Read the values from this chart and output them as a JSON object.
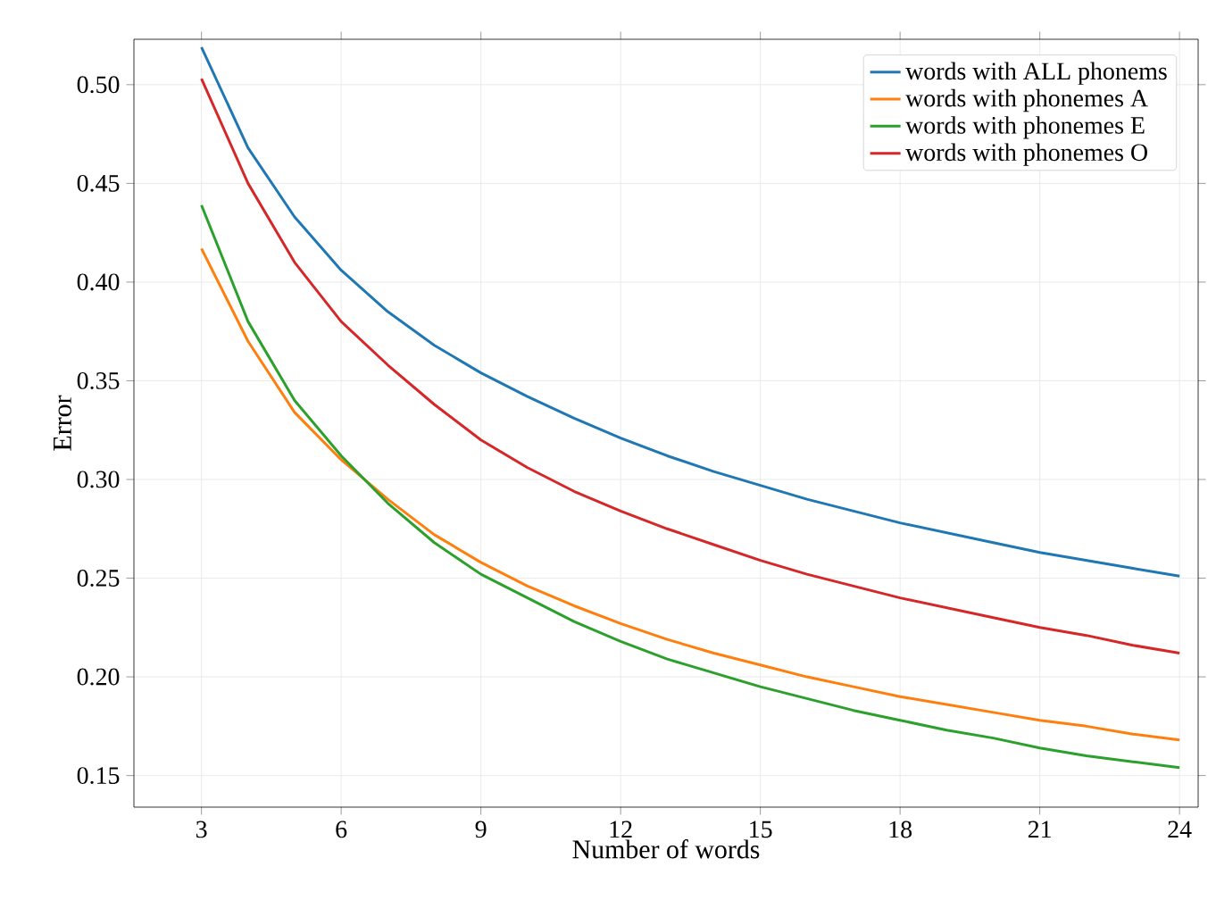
{
  "chart_data": {
    "type": "line",
    "xlabel": "Number of words",
    "ylabel": "Error",
    "x": [
      3,
      4,
      5,
      6,
      7,
      8,
      9,
      10,
      11,
      12,
      13,
      14,
      15,
      16,
      17,
      18,
      19,
      20,
      21,
      22,
      23,
      24
    ],
    "series": [
      {
        "name": "words with ALL phonems",
        "color": "#1f77b4",
        "values": [
          0.519,
          0.468,
          0.433,
          0.406,
          0.385,
          0.368,
          0.354,
          0.342,
          0.331,
          0.321,
          0.312,
          0.304,
          0.297,
          0.29,
          0.284,
          0.278,
          0.273,
          0.268,
          0.263,
          0.259,
          0.255,
          0.251
        ]
      },
      {
        "name": "words with phonemes A",
        "color": "#ff7f0e",
        "values": [
          0.417,
          0.37,
          0.334,
          0.31,
          0.29,
          0.272,
          0.258,
          0.246,
          0.236,
          0.227,
          0.219,
          0.212,
          0.206,
          0.2,
          0.195,
          0.19,
          0.186,
          0.182,
          0.178,
          0.175,
          0.171,
          0.168
        ]
      },
      {
        "name": "words with phonemes E",
        "color": "#2ca02c",
        "values": [
          0.439,
          0.38,
          0.34,
          0.312,
          0.288,
          0.268,
          0.252,
          0.24,
          0.228,
          0.218,
          0.209,
          0.202,
          0.195,
          0.189,
          0.183,
          0.178,
          0.173,
          0.169,
          0.164,
          0.16,
          0.157,
          0.154
        ]
      },
      {
        "name": "words with phonemes O",
        "color": "#d62728",
        "values": [
          0.503,
          0.45,
          0.41,
          0.38,
          0.358,
          0.338,
          0.32,
          0.306,
          0.294,
          0.284,
          0.275,
          0.267,
          0.259,
          0.252,
          0.246,
          0.24,
          0.235,
          0.23,
          0.225,
          0.221,
          0.216,
          0.212
        ]
      }
    ],
    "xlim": [
      1.55,
      24.4
    ],
    "ylim": [
      0.134,
      0.523
    ],
    "xticks": [
      3,
      6,
      9,
      12,
      15,
      18,
      21,
      24
    ],
    "yticks": [
      {
        "value": 0.15,
        "label": "0.15"
      },
      {
        "value": 0.2,
        "label": "0.20"
      },
      {
        "value": 0.25,
        "label": "0.25"
      },
      {
        "value": 0.3,
        "label": "0.30"
      },
      {
        "value": 0.35,
        "label": "0.35"
      },
      {
        "value": 0.4,
        "label": "0.40"
      },
      {
        "value": 0.45,
        "label": "0.45"
      },
      {
        "value": 0.5,
        "label": "0.50"
      }
    ],
    "grid": true,
    "legend": "top right",
    "marker": "none",
    "line_style": "solid"
  }
}
